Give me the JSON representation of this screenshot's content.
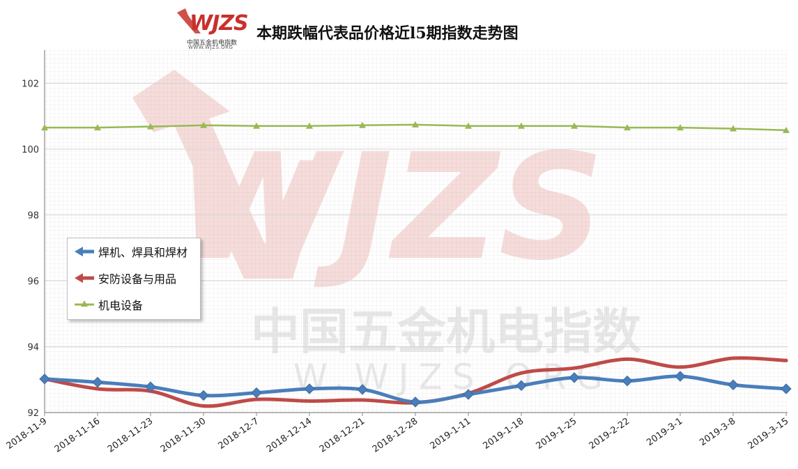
{
  "logo": {
    "brand": "WJZS",
    "subtitle": "中国五金机电指数",
    "url": "WWW.WJZS.ORG"
  },
  "watermark": {
    "brand": "WJZS",
    "subtitle": "中国五金机电指数",
    "url": "W.WJZS.ORG"
  },
  "chart_data": {
    "type": "line",
    "title": "本期跌幅代表品价格近l5期指数走势图",
    "xlabel": "",
    "ylabel": "",
    "categories": [
      "2018-11-9",
      "2018-11-16",
      "2018-11-23",
      "2018-11-30",
      "2018-12-7",
      "2018-12-14",
      "2018-12-21",
      "2018-12-28",
      "2019-1-11",
      "2019-1-18",
      "2019-1-25",
      "2019-2-22",
      "2019-3-1",
      "2019-3-8",
      "2019-3-15"
    ],
    "ylim": [
      92,
      103
    ],
    "yticks": [
      92,
      94,
      96,
      98,
      100,
      102
    ],
    "grid": true,
    "legend_position": "left-middle",
    "series": [
      {
        "name": "焊机、焊具和焊材",
        "color": "#4a7ebb",
        "marker": "diamond",
        "values": [
          93.02,
          92.92,
          92.78,
          92.52,
          92.6,
          92.72,
          92.7,
          92.32,
          92.55,
          92.82,
          93.06,
          92.96,
          93.1,
          92.84,
          92.72
        ]
      },
      {
        "name": "安防设备与用品",
        "color": "#be4b48",
        "marker": "none",
        "values": [
          93.02,
          92.72,
          92.65,
          92.2,
          92.4,
          92.35,
          92.38,
          92.3,
          92.58,
          93.2,
          93.35,
          93.62,
          93.38,
          93.65,
          93.58
        ]
      },
      {
        "name": "机电设备",
        "color": "#98b954",
        "marker": "triangle",
        "values": [
          100.65,
          100.65,
          100.68,
          100.72,
          100.7,
          100.7,
          100.72,
          100.74,
          100.7,
          100.7,
          100.7,
          100.65,
          100.65,
          100.62,
          100.57
        ]
      }
    ]
  }
}
